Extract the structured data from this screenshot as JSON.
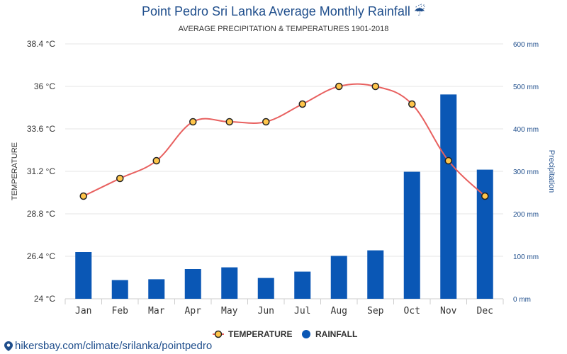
{
  "title": "Point Pedro Sri Lanka Average Monthly Rainfall",
  "title_icon": "umbrella-icon",
  "subtitle": "AVERAGE PRECIPITATION & TEMPERATURES 1901-2018",
  "footer": {
    "url_text": "hikersbay.com/climate/srilanka/pointpedro",
    "icon": "map-pin-icon"
  },
  "colors": {
    "temperature_line": "#e8605f",
    "temperature_marker": "#ffc54a",
    "rainfall_bar": "#0a57b5",
    "axis_text_right": "#1f4e8c"
  },
  "chart_data": {
    "type": "bar+line",
    "categories": [
      "Jan",
      "Feb",
      "Mar",
      "Apr",
      "May",
      "Jun",
      "Jul",
      "Aug",
      "Sep",
      "Oct",
      "Nov",
      "Dec"
    ],
    "ylabel_left": "TEMPERATURE",
    "ylabel_right": "Precipitation",
    "yticks_left": [
      "24 °C",
      "26.4 °C",
      "28.8 °C",
      "31.2 °C",
      "33.6 °C",
      "36 °C",
      "38.4 °C"
    ],
    "yticks_right": [
      "0 mm",
      "100 mm",
      "200 mm",
      "300 mm",
      "400 mm",
      "500 mm",
      "600 mm"
    ],
    "ylim_left": [
      24,
      38.4
    ],
    "ylim_right": [
      0,
      600
    ],
    "grid": true,
    "legend_position": "bottom-center",
    "series": [
      {
        "name": "TEMPERATURE",
        "type": "line",
        "axis": "left",
        "values": [
          29.8,
          30.8,
          31.8,
          34.0,
          34.0,
          34.0,
          35.0,
          36.0,
          36.0,
          35.0,
          31.8,
          29.8
        ]
      },
      {
        "name": "RAINFALL",
        "type": "bar",
        "axis": "right",
        "values": [
          110,
          44,
          46,
          70,
          74,
          49,
          64,
          101,
          114,
          299,
          481,
          304
        ]
      }
    ]
  }
}
